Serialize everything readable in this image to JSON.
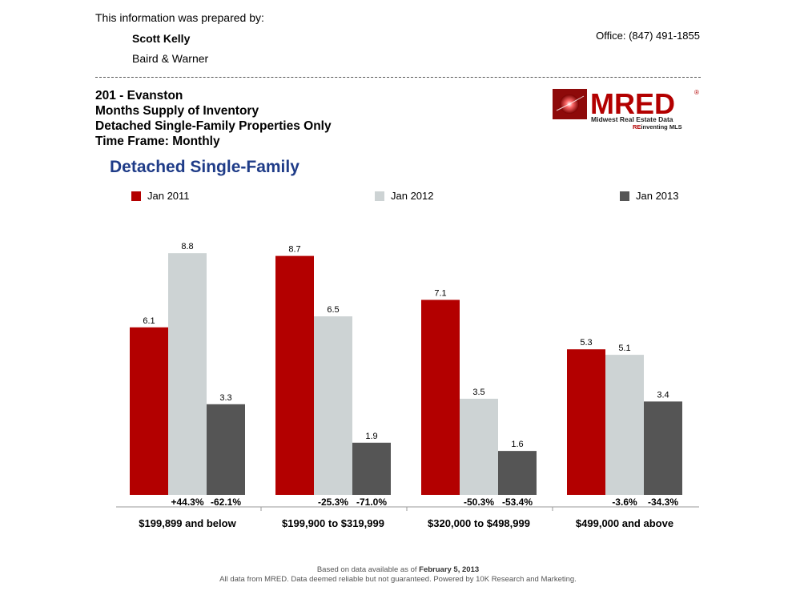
{
  "header": {
    "prepared_by_label": "This information was prepared by:",
    "agent_name": "Scott Kelly",
    "agent_company": "Baird & Warner",
    "office": "Office: (847) 491-1855"
  },
  "report": {
    "line1": "201 - Evanston",
    "line2": "Months Supply of Inventory",
    "line3": "Detached Single-Family Properties Only",
    "line4": "Time Frame: Monthly"
  },
  "logo": {
    "name": "MRED",
    "tagline": "Midwest Real Estate Data",
    "sub_prefix": "RE",
    "sub_rest": "inventing MLS",
    "registered": "®"
  },
  "colors": {
    "jan2011": "#b30000",
    "jan2012": "#cdd3d4",
    "jan2013": "#555555",
    "title_blue": "#1f3c88"
  },
  "chart_data": {
    "type": "bar",
    "title": "Detached Single-Family",
    "categories": [
      "$199,899 and below",
      "$199,900 to $319,999",
      "$320,000 to $498,999",
      "$499,000 and above"
    ],
    "series": [
      {
        "name": "Jan 2011",
        "values": [
          6.1,
          8.7,
          7.1,
          5.3
        ]
      },
      {
        "name": "Jan 2012",
        "values": [
          8.8,
          6.5,
          3.5,
          5.1
        ]
      },
      {
        "name": "Jan 2013",
        "values": [
          3.3,
          1.9,
          1.6,
          3.4
        ]
      }
    ],
    "pct_change_2012": [
      "+44.3%",
      "-25.3%",
      "-50.3%",
      "-3.6%"
    ],
    "pct_change_2013": [
      "-62.1%",
      "-71.0%",
      "-53.4%",
      "-34.3%"
    ],
    "ylim": [
      0,
      10
    ],
    "xlabel": "",
    "ylabel": ""
  },
  "footer": {
    "line1_prefix": "Based on data available as of",
    "line1_date": "February 5, 2013",
    "line2": "All data from MRED. Data deemed reliable but not guaranteed. Powered by 10K Research and Marketing."
  }
}
